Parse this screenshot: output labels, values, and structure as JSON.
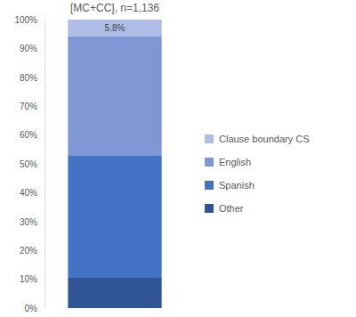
{
  "chart_data": {
    "type": "bar",
    "title": "[MC+CC], n=1,136",
    "stacked": true,
    "legend": "right",
    "categories": [
      null
    ],
    "ylim": [
      0,
      100
    ],
    "yticks": [
      {
        "value": 0,
        "label": "0%"
      },
      {
        "value": 10,
        "label": "10%"
      },
      {
        "value": 20,
        "label": "20%"
      },
      {
        "value": 30,
        "label": "30%"
      },
      {
        "value": 40,
        "label": "40%"
      },
      {
        "value": 50,
        "label": "50%"
      },
      {
        "value": 60,
        "label": "60%"
      },
      {
        "value": 70,
        "label": "70%"
      },
      {
        "value": 80,
        "label": "80%"
      },
      {
        "value": 90,
        "label": "90%"
      },
      {
        "value": 100,
        "label": "100%"
      }
    ],
    "series": [
      {
        "name": "Other",
        "color": "#2f5597",
        "values": [
          10.5
        ]
      },
      {
        "name": "Spanish",
        "color": "#4472c4",
        "values": [
          42.5
        ]
      },
      {
        "name": "English",
        "color": "#8097d5",
        "values": [
          41.2
        ]
      },
      {
        "name": "Clause boundary CS",
        "color": "#aebde6",
        "values": [
          5.8
        ],
        "data_labels": true,
        "value_labels": [
          "5.8%"
        ]
      }
    ]
  }
}
